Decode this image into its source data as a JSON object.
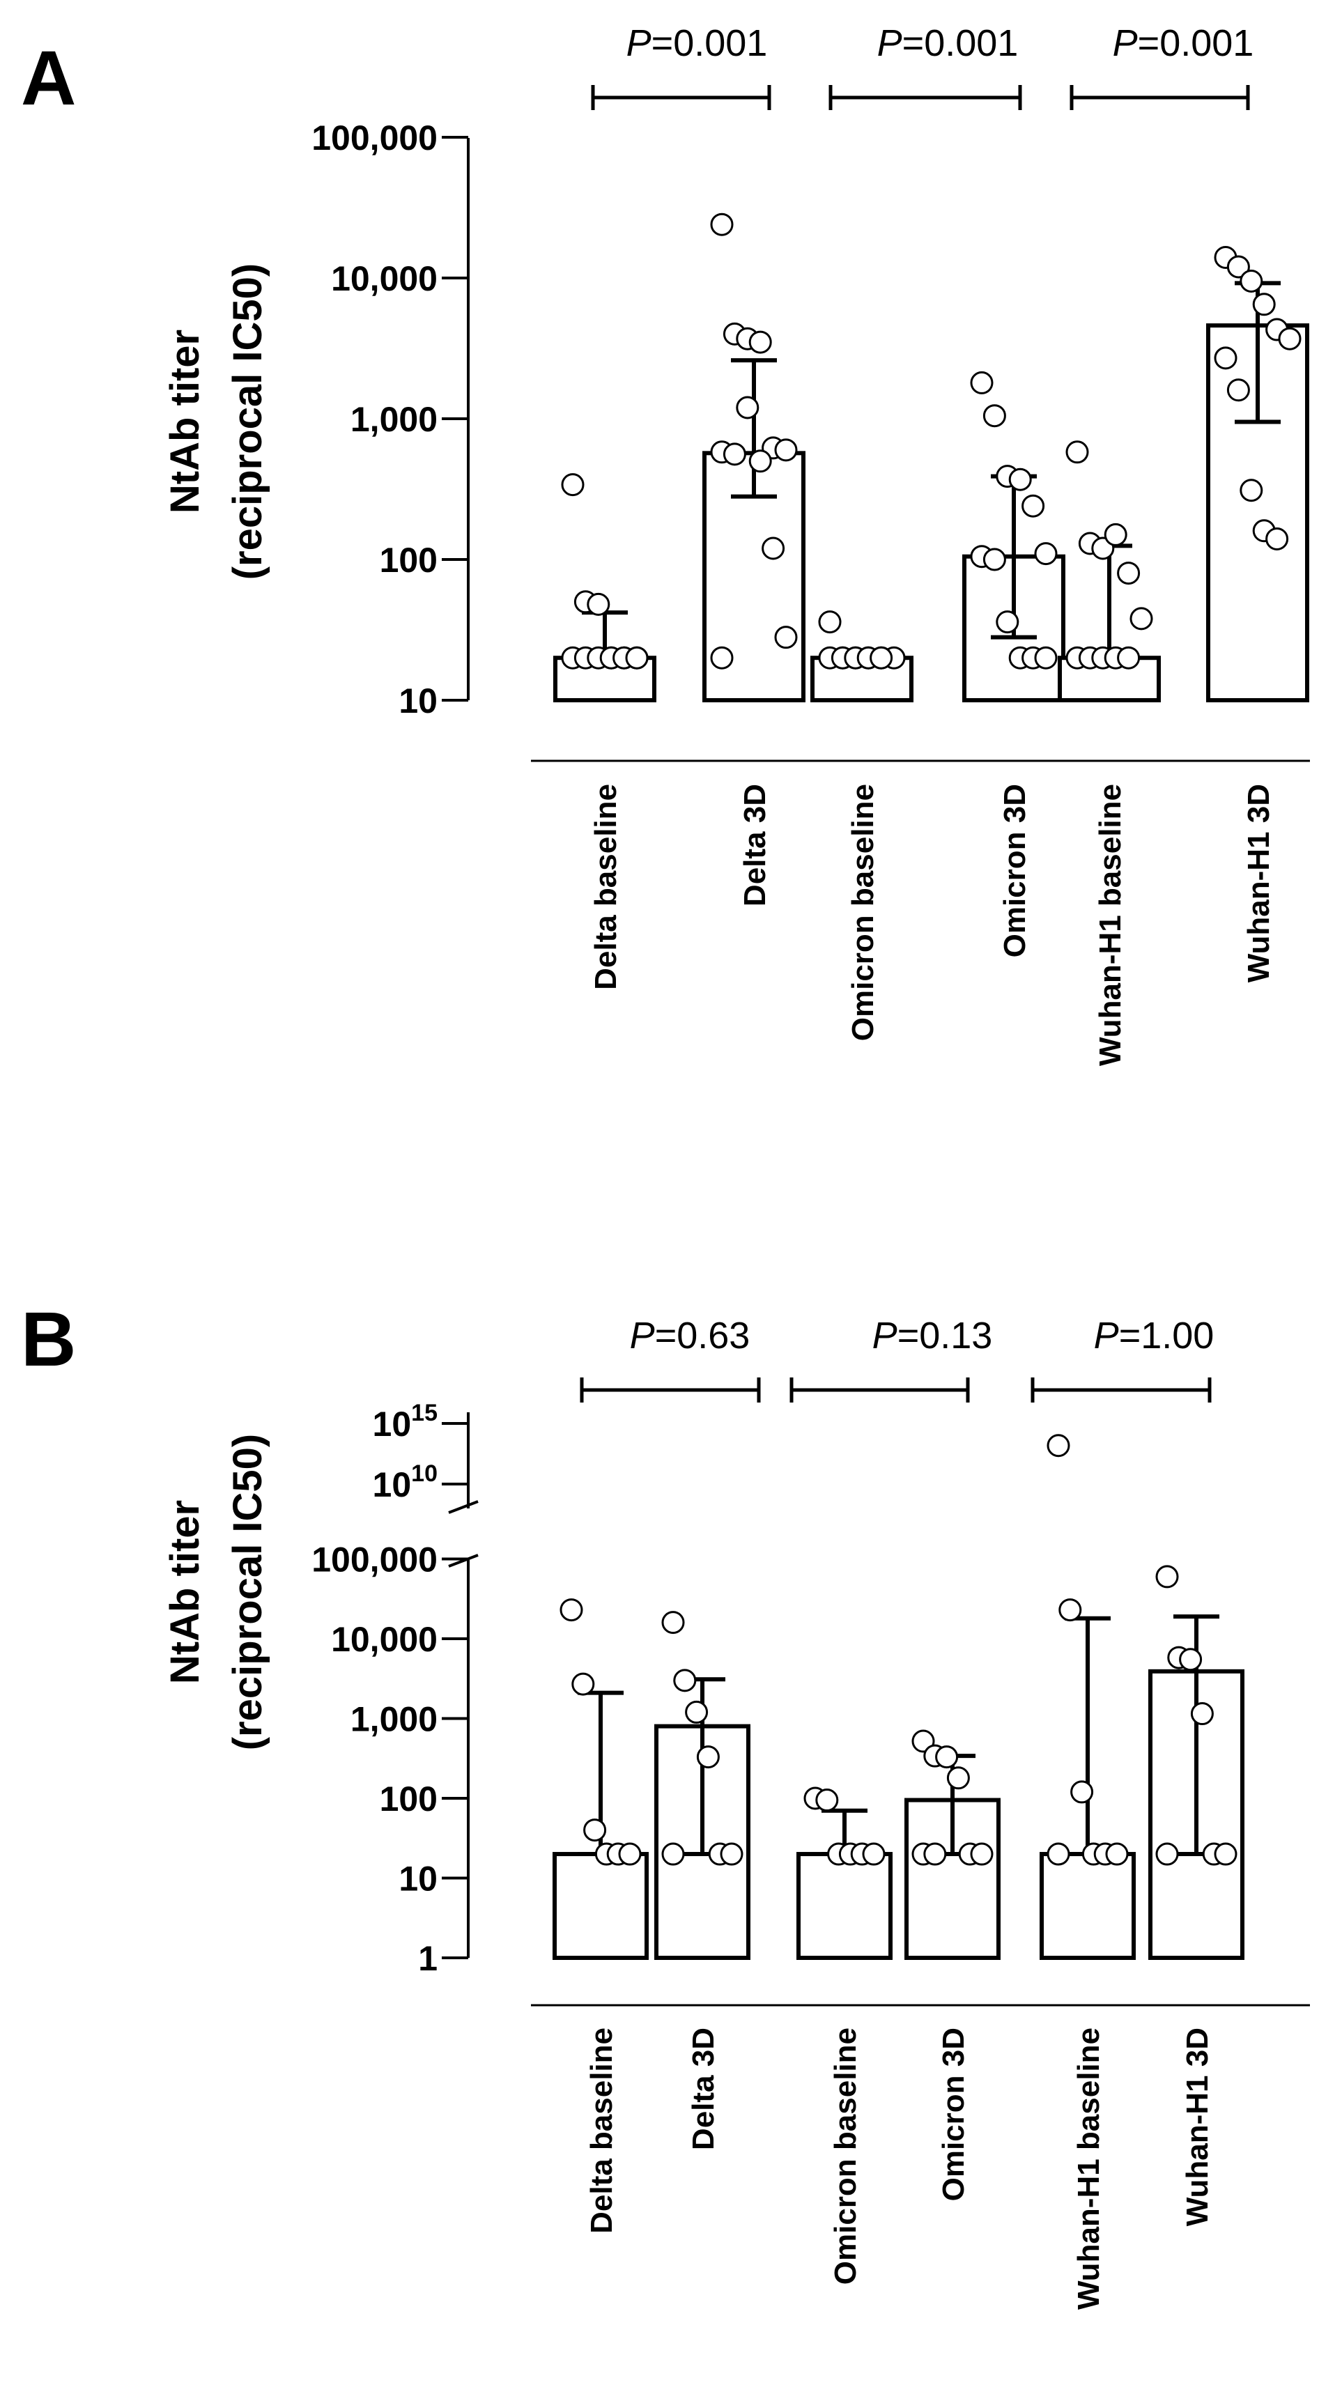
{
  "chart_data": [
    {
      "panel": "A",
      "type": "bar",
      "yscale": "log",
      "ylabel_line1": "NtAb titer",
      "ylabel_line2": "(reciprocal IC50)",
      "ylim": [
        10,
        100000
      ],
      "yticks": [
        {
          "value": 10,
          "label": "10"
        },
        {
          "value": 100,
          "label": "100"
        },
        {
          "value": 1000,
          "label": "1,000"
        },
        {
          "value": 10000,
          "label": "10,000"
        },
        {
          "value": 100000,
          "label": "100,000"
        }
      ],
      "categories": [
        "Delta baseline",
        "Delta 3D",
        "Omicron baseline",
        "Omicron 3D",
        "Wuhan-H1 baseline",
        "Wuhan-H1 3D"
      ],
      "values": [
        20,
        570,
        20,
        105,
        20,
        4600
      ],
      "error_low": [
        20,
        280,
        20,
        28,
        20,
        950
      ],
      "error_high": [
        42,
        2600,
        20,
        390,
        125,
        9200
      ],
      "points": [
        [
          340,
          50,
          48,
          20,
          20,
          20,
          20,
          20,
          20,
          20,
          20,
          20
        ],
        [
          24000,
          4000,
          3700,
          3500,
          620,
          600,
          580,
          560,
          1200,
          500,
          120,
          28,
          20
        ],
        [
          36,
          20,
          20,
          20,
          20,
          20,
          20,
          20,
          20,
          20,
          20
        ],
        [
          1800,
          1050,
          390,
          370,
          240,
          110,
          105,
          100,
          36,
          20,
          20,
          20
        ],
        [
          580,
          130,
          120,
          150,
          80,
          38,
          20,
          20,
          20,
          20,
          20
        ],
        [
          14000,
          12000,
          9500,
          6500,
          4300,
          3700,
          2700,
          1600,
          310,
          160,
          140
        ]
      ],
      "comparisons": [
        {
          "pair": [
            0,
            1
          ],
          "p_prefix": "P",
          "p_text": "=0.001"
        },
        {
          "pair": [
            2,
            3
          ],
          "p_prefix": "P",
          "p_text": "=0.001"
        },
        {
          "pair": [
            4,
            5
          ],
          "p_prefix": "P",
          "p_text": "=0.001"
        }
      ]
    },
    {
      "panel": "B",
      "type": "bar",
      "yscale": "log",
      "ylabel_line1": "NtAb titer",
      "ylabel_line2": "(reciprocal IC50)",
      "ylim": [
        1,
        100000
      ],
      "break_upper_ticks": [
        {
          "base": "10",
          "exp": "15",
          "value": 1000000000000000.0
        },
        {
          "base": "10",
          "exp": "10",
          "value": 10000000000.0
        }
      ],
      "yticks": [
        {
          "value": 1,
          "label": "1"
        },
        {
          "value": 10,
          "label": "10"
        },
        {
          "value": 100,
          "label": "100"
        },
        {
          "value": 1000,
          "label": "1,000"
        },
        {
          "value": 10000,
          "label": "10,000"
        },
        {
          "value": 100000,
          "label": "100,000"
        }
      ],
      "categories": [
        "Delta baseline",
        "Delta 3D",
        "Omicron baseline",
        "Omicron 3D",
        "Wuhan-H1 baseline",
        "Wuhan-H1 3D"
      ],
      "values": [
        20,
        800,
        20,
        95,
        20,
        3900
      ],
      "error_low": [
        20,
        20,
        20,
        20,
        20,
        20
      ],
      "error_high": [
        2100,
        3100,
        70,
        340,
        18000,
        19000
      ],
      "points": [
        [
          23000,
          2700,
          40,
          20,
          20,
          20
        ],
        [
          16000,
          3000,
          1200,
          330,
          20,
          20,
          20
        ],
        [
          100,
          95,
          20,
          20,
          20,
          20
        ],
        [
          520,
          340,
          330,
          180,
          20,
          20,
          20,
          20
        ],
        [
          15000000000000.0,
          23000,
          120,
          20,
          20,
          20,
          20
        ],
        [
          60000,
          5800,
          5500,
          1150,
          20,
          20,
          20
        ]
      ],
      "comparisons": [
        {
          "pair": [
            0,
            1
          ],
          "p_prefix": "P",
          "p_text": "=0.63"
        },
        {
          "pair": [
            2,
            3
          ],
          "p_prefix": "P",
          "p_text": "=0.13"
        },
        {
          "pair": [
            4,
            5
          ],
          "p_prefix": "P",
          "p_text": "=1.00"
        }
      ]
    }
  ]
}
